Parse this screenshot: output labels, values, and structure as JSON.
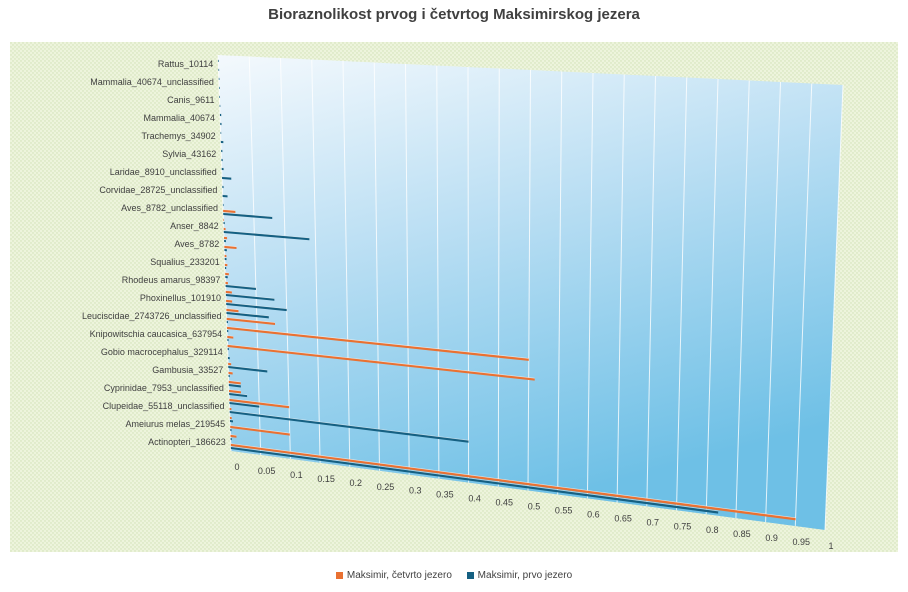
{
  "chart_data": {
    "type": "bar",
    "orientation": "horizontal",
    "title": "Bioraznolikost prvog i četvrtog Maksimirskog jezera",
    "xlim": [
      0,
      1
    ],
    "x_ticks": [
      "0",
      "0.05",
      "0.1",
      "0.15",
      "0.2",
      "0.25",
      "0.3",
      "0.35",
      "0.4",
      "0.45",
      "0.5",
      "0.55",
      "0.6",
      "0.65",
      "0.7",
      "0.75",
      "0.8",
      "0.85",
      "0.9",
      "0.95",
      "1"
    ],
    "category_labels": [
      "Rattus_10114",
      "Mammalia_40674_unclassified",
      "Canis_9611",
      "Mammalia_40674",
      "Trachemys_34902",
      "Sylvia_43162",
      "Laridae_8910_unclassified",
      "Corvidae_28725_unclassified",
      "Aves_8782_unclassified",
      "Anser_8842",
      "Aves_8782",
      "Squalius_233201",
      "Rhodeus amarus_98397",
      "Phoxinellus_101910",
      "Leuciscidae_2743726_unclassified",
      "Knipowitschia caucasica_637954",
      "Gobio macrocephalus_329114",
      "Gambusia_33527",
      "Cyprinidae_7953_unclassified",
      "Clupeidae_55118_unclassified",
      "Ameiurus melas_219545",
      "Actinopteri_186623"
    ],
    "slots_per_label": 2,
    "categories_note": "Bars are listed top to bottom; 44 category slots, every second slot labelled.",
    "series": [
      {
        "name": "Maksimir, četvrto jezero",
        "color": "#E97132",
        "values": [
          0,
          0,
          0,
          0,
          0,
          0,
          0,
          0,
          0,
          0,
          0,
          0,
          0,
          0,
          0,
          0,
          0,
          0.02,
          0.001,
          0.003,
          0.005,
          0.02,
          0.003,
          0.004,
          0.006,
          0.004,
          0.01,
          0.01,
          0.02,
          0.08,
          0.5,
          0.01,
          0.51,
          0,
          0.005,
          0.007,
          0.02,
          0.02,
          0.1,
          0.003,
          0.003,
          0.1,
          0.01,
          0.95
        ]
      },
      {
        "name": "Maksimir, prvo jezero",
        "color": "#156082",
        "values": [
          0.001,
          0.001,
          0.001,
          0.001,
          0.001,
          0.001,
          0.002,
          0.002,
          0.001,
          0.004,
          0.002,
          0.002,
          0.003,
          0.015,
          0.002,
          0.008,
          0.001,
          0.08,
          0.002,
          0.14,
          0.003,
          0.004,
          0.003,
          0.002,
          0.004,
          0.05,
          0.08,
          0.1,
          0.07,
          0.002,
          0.002,
          0.002,
          0.002,
          0.003,
          0.065,
          0.002,
          0.02,
          0.03,
          0.05,
          0.4,
          0.005,
          0.002,
          0.002,
          0.82
        ]
      }
    ]
  }
}
